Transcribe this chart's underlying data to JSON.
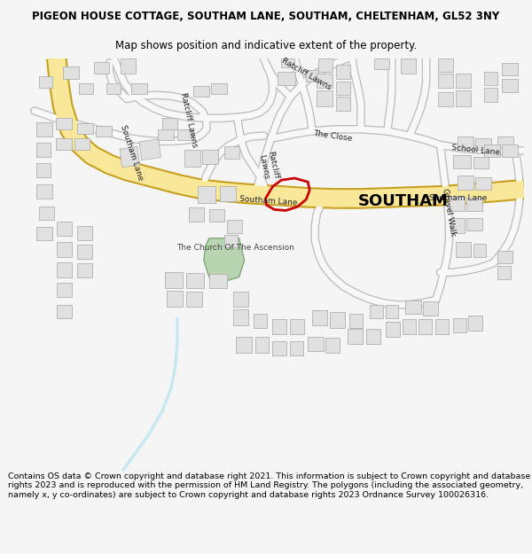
{
  "title_line1": "PIGEON HOUSE COTTAGE, SOUTHAM LANE, SOUTHAM, CHELTENHAM, GL52 3NY",
  "title_line2": "Map shows position and indicative extent of the property.",
  "footer_text": "Contains OS data © Crown copyright and database right 2021. This information is subject to Crown copyright and database rights 2023 and is reproduced with the permission of HM Land Registry. The polygons (including the associated geometry, namely x, y co-ordinates) are subject to Crown copyright and database rights 2023 Ordnance Survey 100026316.",
  "bg_color": "#f5f5f5",
  "map_bg": "#ffffff",
  "road_yellow_fill": "#fae89a",
  "road_yellow_border": "#c8a020",
  "building_color": "#e0e0e0",
  "building_edge": "#b0b0b0",
  "green_color": "#b8d4b0",
  "green_edge": "#80a878",
  "red_polygon": "#cc0000",
  "label_color": "#222222",
  "southam_label_color": "#000000",
  "road_line_color": "#c0c0c0",
  "road_line_fill": "#f8f8f8",
  "water_color": "#c8e8f0"
}
